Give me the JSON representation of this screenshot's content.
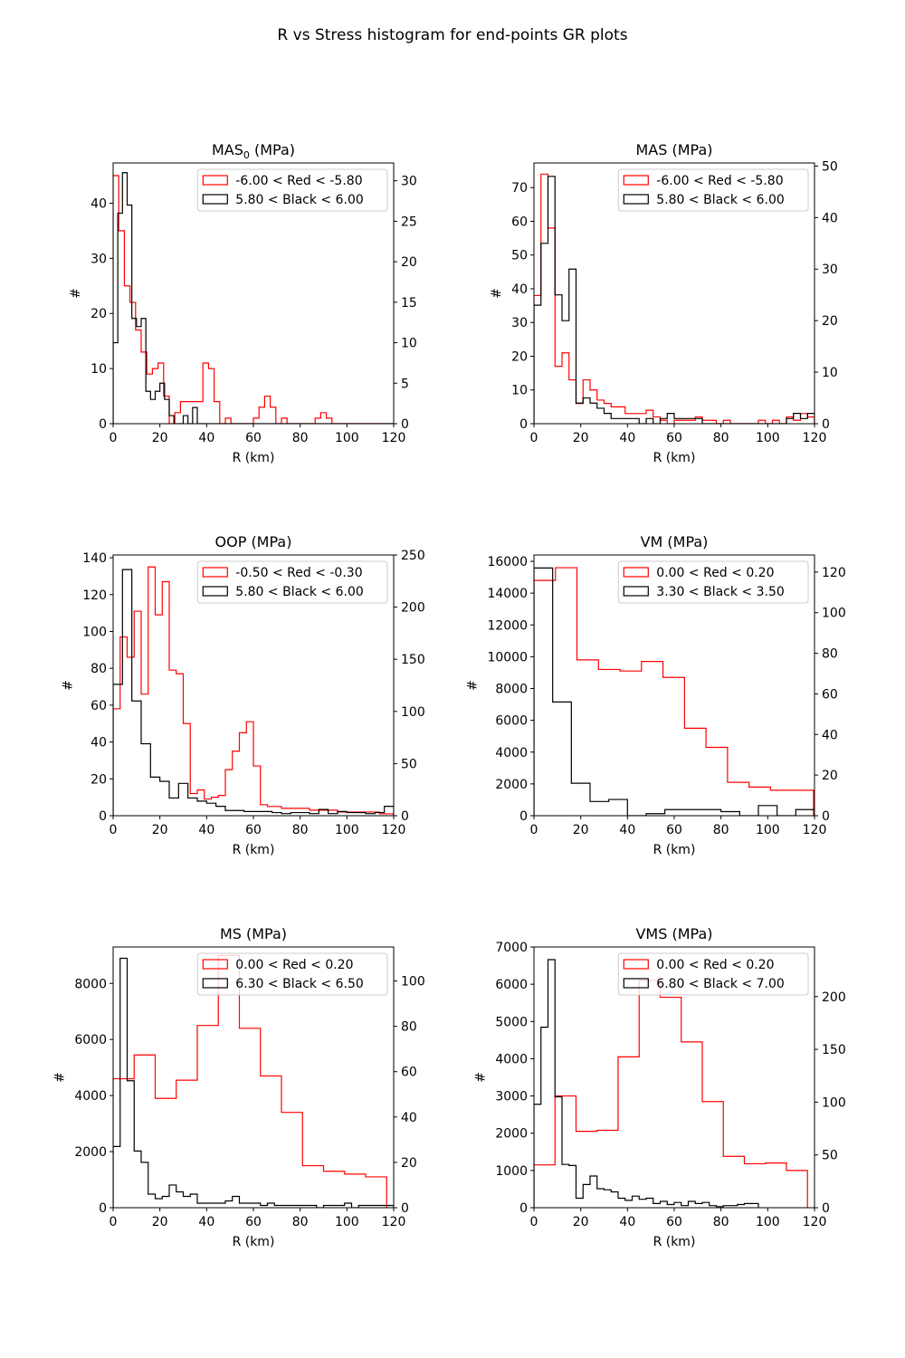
{
  "figure": {
    "title": "R vs Stress histogram for end-points GR plots",
    "red_color": "#ff0000",
    "black_color": "#000000"
  },
  "chart_data": [
    {
      "type": "histogram",
      "title": "MAS",
      "title_subscript": "0",
      "title_suffix": " (MPa)",
      "xlabel": "R (km)",
      "ylabel": "#",
      "xlim": [
        0,
        120
      ],
      "left_ylim": [
        0,
        47.3
      ],
      "right_ylim": [
        0,
        32.2
      ],
      "x_ticks": [
        0,
        20,
        40,
        60,
        80,
        100,
        120
      ],
      "left_ticks": [
        0,
        10,
        20,
        30,
        40
      ],
      "right_ticks": [
        0,
        5,
        10,
        15,
        20,
        25,
        30
      ],
      "legend_position": "top-right",
      "series": [
        {
          "name": "-6.00 < Red < -5.80",
          "color": "#ff0000",
          "axis": "left",
          "bin_width": 2.4,
          "values": [
            45,
            35,
            25,
            22,
            17,
            13,
            9,
            10,
            11,
            5,
            0,
            2,
            4,
            4,
            4,
            4,
            11,
            10,
            4,
            0,
            1,
            0,
            0,
            0,
            0,
            1,
            3,
            5,
            3,
            0,
            1,
            0,
            0,
            0,
            0,
            0,
            1,
            2,
            1,
            0,
            0,
            0,
            0,
            0,
            0,
            0,
            0,
            0,
            0,
            0,
            0,
            0,
            0,
            0,
            0,
            0,
            0,
            0,
            0,
            0
          ]
        },
        {
          "name": "5.80 < Black < 6.00",
          "color": "#000000",
          "axis": "right",
          "bin_width": 2,
          "values": [
            10,
            26,
            31,
            27,
            13,
            12,
            13,
            4,
            3,
            4,
            5,
            3,
            1,
            0,
            0,
            1,
            0,
            2,
            0,
            0,
            0,
            0,
            0,
            0,
            0,
            0,
            0,
            0,
            0,
            0,
            0,
            0,
            0,
            0,
            0,
            0,
            0,
            0,
            0,
            0,
            0,
            0,
            0,
            0,
            0,
            0,
            0,
            0,
            0,
            0,
            0,
            0,
            0,
            0,
            0,
            0,
            0,
            0,
            0,
            0
          ]
        }
      ]
    },
    {
      "type": "histogram",
      "title": "MAS (MPa)",
      "title_subscript": "",
      "title_suffix": "",
      "xlabel": "R (km)",
      "ylabel": "#",
      "xlim": [
        0,
        120
      ],
      "left_ylim": [
        0,
        77.3
      ],
      "right_ylim": [
        0,
        50.6
      ],
      "x_ticks": [
        0,
        20,
        40,
        60,
        80,
        100,
        120
      ],
      "left_ticks": [
        0,
        10,
        20,
        30,
        40,
        50,
        60,
        70
      ],
      "right_ticks": [
        0,
        10,
        20,
        30,
        40,
        50
      ],
      "legend_position": "top-right",
      "series": [
        {
          "name": "-6.00 < Red < -5.80",
          "color": "#ff0000",
          "axis": "left",
          "bin_width": 3,
          "values": [
            38,
            74,
            58,
            17,
            21,
            13,
            6,
            13,
            10,
            7,
            6,
            5,
            5,
            3,
            3,
            3,
            4,
            2,
            1,
            0,
            1,
            1,
            1,
            2,
            1,
            1,
            0,
            1,
            0,
            0,
            0,
            0,
            1,
            0,
            1,
            0,
            2,
            1,
            3,
            2
          ]
        },
        {
          "name": "5.80 < Black < 6.00",
          "color": "#000000",
          "axis": "right",
          "bin_width": 3,
          "values": [
            23,
            35,
            48,
            25,
            20,
            30,
            4,
            5,
            4,
            3,
            2,
            1,
            1,
            1,
            1,
            0,
            1,
            0,
            1,
            2,
            1,
            1,
            1,
            1,
            0,
            0,
            0,
            0,
            0,
            0,
            0,
            0,
            0,
            0,
            0,
            0,
            1,
            2,
            1,
            2
          ]
        }
      ]
    },
    {
      "type": "histogram",
      "title": "OOP (MPa)",
      "title_subscript": "",
      "title_suffix": "",
      "xlabel": "R (km)",
      "ylabel": "#",
      "xlim": [
        0,
        120
      ],
      "left_ylim": [
        0,
        141.5
      ],
      "right_ylim": [
        0,
        250
      ],
      "x_ticks": [
        0,
        20,
        40,
        60,
        80,
        100,
        120
      ],
      "left_ticks": [
        0,
        20,
        40,
        60,
        80,
        100,
        120,
        140
      ],
      "right_ticks": [
        0,
        50,
        100,
        150,
        200,
        250
      ],
      "legend_position": "top-right",
      "series": [
        {
          "name": "-0.50 < Red < -0.30",
          "color": "#ff0000",
          "axis": "left",
          "bin_width": 3,
          "values": [
            58,
            97,
            86,
            111,
            66,
            135,
            109,
            127,
            79,
            77,
            50,
            12,
            14,
            9,
            10,
            11,
            25,
            35,
            45,
            51,
            27,
            6,
            5,
            5,
            4,
            4,
            4,
            4,
            3,
            3,
            3,
            3,
            2,
            2,
            2,
            2,
            2,
            2,
            1,
            1
          ]
        },
        {
          "name": "5.80 < Black < 6.00",
          "color": "#000000",
          "axis": "right",
          "bin_width": 4,
          "values": [
            126,
            236,
            110,
            69,
            37,
            33,
            17,
            31,
            17,
            14,
            12,
            9,
            5,
            5,
            4,
            4,
            4,
            3,
            2,
            3,
            3,
            2,
            6,
            2,
            4,
            3,
            3,
            2,
            3,
            9
          ]
        }
      ]
    },
    {
      "type": "histogram",
      "title": "VM (MPa)",
      "title_subscript": "",
      "title_suffix": "",
      "xlabel": "R (km)",
      "ylabel": "#",
      "xlim": [
        0,
        120
      ],
      "left_ylim": [
        0,
        16400
      ],
      "right_ylim": [
        0,
        128.4
      ],
      "x_ticks": [
        0,
        20,
        40,
        60,
        80,
        100,
        120
      ],
      "left_ticks": [
        0,
        2000,
        4000,
        6000,
        8000,
        10000,
        12000,
        14000,
        16000
      ],
      "right_ticks": [
        0,
        20,
        40,
        60,
        80,
        100,
        120
      ],
      "legend_position": "top-right",
      "series": [
        {
          "name": "0.00 < Red < 0.20",
          "color": "#ff0000",
          "axis": "left",
          "bin_width": 9.2,
          "values": [
            14800,
            15600,
            9800,
            9200,
            9100,
            9700,
            8700,
            5500,
            4300,
            2100,
            1800,
            1600,
            1600
          ]
        },
        {
          "name": "3.30 < Black < 3.50",
          "color": "#000000",
          "axis": "right",
          "bin_width": 8,
          "values": [
            122,
            56,
            16,
            7,
            8,
            0,
            1,
            3,
            3,
            3,
            2,
            0,
            5,
            0,
            3
          ]
        }
      ]
    },
    {
      "type": "histogram",
      "title": "MS (MPa)",
      "title_subscript": "",
      "title_suffix": "",
      "xlabel": "R (km)",
      "ylabel": "#",
      "xlim": [
        0,
        120
      ],
      "left_ylim": [
        0,
        9300
      ],
      "right_ylim": [
        0,
        115
      ],
      "x_ticks": [
        0,
        20,
        40,
        60,
        80,
        100,
        120
      ],
      "left_ticks": [
        0,
        2000,
        4000,
        6000,
        8000
      ],
      "right_ticks": [
        0,
        20,
        40,
        60,
        80,
        100
      ],
      "legend_position": "top-right",
      "series": [
        {
          "name": "0.00 < Red < 0.20",
          "color": "#ff0000",
          "axis": "left",
          "bin_width": 9,
          "values": [
            4600,
            5450,
            3900,
            4550,
            6500,
            9000,
            6400,
            4700,
            3400,
            1500,
            1300,
            1200,
            1100
          ]
        },
        {
          "name": "6.30 < Black < 6.50",
          "color": "#000000",
          "axis": "right",
          "bin_width": 3,
          "values": [
            27,
            110,
            56,
            25,
            20,
            6,
            4,
            5,
            10,
            7,
            5,
            6,
            2,
            2,
            2,
            2,
            3,
            5,
            2,
            2,
            2,
            1,
            2,
            1,
            1,
            1,
            1,
            1,
            1,
            0,
            1,
            1,
            1,
            2,
            0,
            1,
            1,
            1,
            1,
            1
          ]
        }
      ]
    },
    {
      "type": "histogram",
      "title": "VMS (MPa)",
      "title_subscript": "",
      "title_suffix": "",
      "xlabel": "R (km)",
      "ylabel": "#",
      "xlim": [
        0,
        120
      ],
      "left_ylim": [
        0,
        7000
      ],
      "right_ylim": [
        0,
        247
      ],
      "x_ticks": [
        0,
        20,
        40,
        60,
        80,
        100,
        120
      ],
      "left_ticks": [
        0,
        1000,
        2000,
        3000,
        4000,
        5000,
        6000,
        7000
      ],
      "right_ticks": [
        0,
        50,
        100,
        150,
        200
      ],
      "legend_position": "top-right",
      "series": [
        {
          "name": "0.00 < Red < 0.20",
          "color": "#ff0000",
          "axis": "left",
          "bin_width": 9,
          "values": [
            1150,
            3000,
            2050,
            2080,
            4050,
            6100,
            5650,
            4450,
            2850,
            1380,
            1180,
            1200,
            1000
          ]
        },
        {
          "name": "6.80 < Black < 7.00",
          "color": "#000000",
          "axis": "right",
          "bin_width": 3,
          "values": [
            98,
            171,
            235,
            105,
            41,
            40,
            9,
            22,
            30,
            18,
            17,
            15,
            9,
            7,
            11,
            8,
            9,
            4,
            6,
            3,
            5,
            2,
            6,
            4,
            5,
            2,
            1,
            2,
            2,
            3,
            4,
            4
          ]
        }
      ]
    }
  ]
}
